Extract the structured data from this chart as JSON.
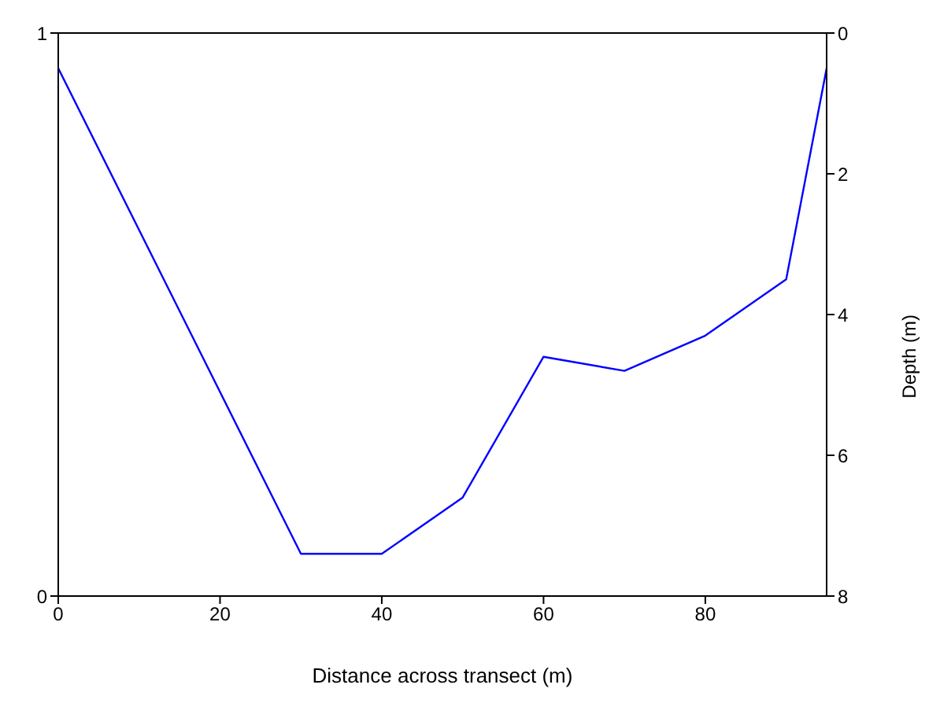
{
  "chart_data": {
    "type": "line",
    "xlabel": "Distance across transect (m)",
    "y2label": "Depth (m)",
    "x": [
      0,
      30,
      40,
      50,
      60,
      70,
      80,
      90,
      95
    ],
    "series": [
      {
        "color": "#0000ff",
        "axis": "y2",
        "values": [
          0.5,
          7.4,
          7.4,
          6.6,
          4.6,
          4.8,
          4.3,
          3.5,
          0.5
        ]
      }
    ],
    "xlim": [
      0,
      95
    ],
    "xticks": [
      0,
      20,
      40,
      60,
      80
    ],
    "ylim": [
      0,
      1
    ],
    "yticks": [
      0,
      1
    ],
    "y2lim": [
      8,
      0
    ],
    "y2ticks": [
      0,
      2,
      4,
      6,
      8
    ],
    "grid": false,
    "legend": false,
    "marker": "none",
    "line_style": "solid"
  }
}
